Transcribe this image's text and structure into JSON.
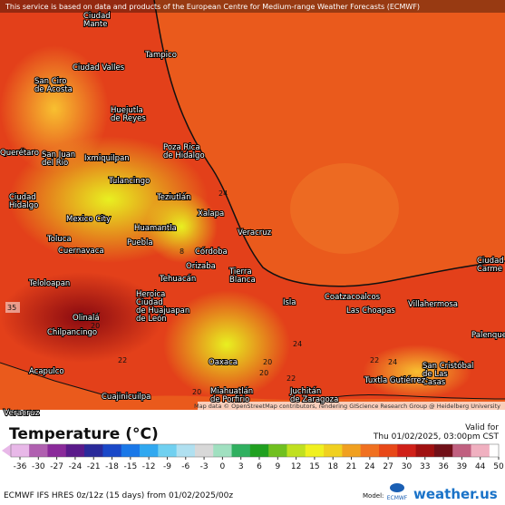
{
  "header": {
    "attribution": "This service is based on data and products of the European Centre for Medium-range Weather Forecasts (ECMWF)"
  },
  "map": {
    "region": "Veracruz",
    "map_attribution": "Map data © OpenStreetMap contributors, rendering GIScience Research Group @ Heidelberg University",
    "cities": [
      [
        "Ciudad",
        "Mante"
      ],
      [
        "Tampico"
      ],
      [
        "Ciudad Valles"
      ],
      [
        "San Ciro",
        "de Acosta"
      ],
      [
        "Huejutla",
        "de Reyes"
      ],
      [
        "Poza Rica",
        "de Hidalgo"
      ],
      [
        "Querétaro"
      ],
      [
        "San Juan",
        "del Río"
      ],
      [
        "Ixmiquilpan"
      ],
      [
        "Tulancingo"
      ],
      [
        "Teziutlán"
      ],
      [
        "Ciudad",
        "Hidalgo"
      ],
      [
        "Xalapa"
      ],
      [
        "Mexico City"
      ],
      [
        "Toluca"
      ],
      [
        "Huamantla"
      ],
      [
        "Veracruz"
      ],
      [
        "Cuernavaca"
      ],
      [
        "Puebla"
      ],
      [
        "Córdoba"
      ],
      [
        "Orizaba"
      ],
      [
        "Tehuacán"
      ],
      [
        "Tierra",
        "Blanca"
      ],
      [
        "Teloloapan"
      ],
      [
        "Heroica",
        "Ciudad",
        "de Huajuapan",
        "de León"
      ],
      [
        "Isla"
      ],
      [
        "Coatzacoalcos"
      ],
      [
        "Villahermosa"
      ],
      [
        "Las Choapas"
      ],
      [
        "Ciudad",
        "Carme"
      ],
      [
        "Olinalá"
      ],
      [
        "Chilpancingo"
      ],
      [
        "Palenque"
      ],
      [
        "Oaxaca"
      ],
      [
        "Acapulco"
      ],
      [
        "San Cristóbal",
        "de Las",
        "Casas"
      ],
      [
        "Tuxtla Gutiérrez"
      ],
      [
        "Miahuatlán",
        "de Porfirio"
      ],
      [
        "Juchitán",
        "de Zaragoza"
      ],
      [
        "Cuajinicuilpa"
      ]
    ],
    "temperature_labels": [
      24,
      8,
      35,
      24,
      20,
      22,
      20,
      20,
      24,
      22,
      22,
      20,
      20
    ]
  },
  "legend": {
    "title": "Temperature (°C)",
    "valid_label": "Valid for",
    "valid_time": "Thu 01/02/2025, 03:00pm CST",
    "ticks": [
      -36,
      -30,
      -27,
      -24,
      -21,
      -18,
      -15,
      -12,
      -9,
      -6,
      -3,
      0,
      3,
      6,
      9,
      12,
      15,
      18,
      21,
      24,
      27,
      30,
      33,
      36,
      39,
      44,
      50
    ],
    "colors": [
      "#e8b8e8",
      "#b060b0",
      "#8a2a9a",
      "#5a1a8a",
      "#2a2a9a",
      "#1a48c8",
      "#1a78e8",
      "#30a8f0",
      "#70d0f0",
      "#b0e0f0",
      "#d8d8d8",
      "#a0e0c0",
      "#30b060",
      "#20a020",
      "#70c020",
      "#c0e020",
      "#f0f020",
      "#f0d020",
      "#f0a020",
      "#f07020",
      "#e84818",
      "#d02018",
      "#a01010",
      "#701018",
      "#c06080",
      "#f0b0c0",
      "#ffffff"
    ]
  },
  "footer": {
    "model_info": "ECMWF IFS HRES 0z/12z (15 days) from 01/02/2025/00z",
    "model_label": "Model:",
    "model_name": "ECMWF",
    "brand": "weather.us"
  }
}
